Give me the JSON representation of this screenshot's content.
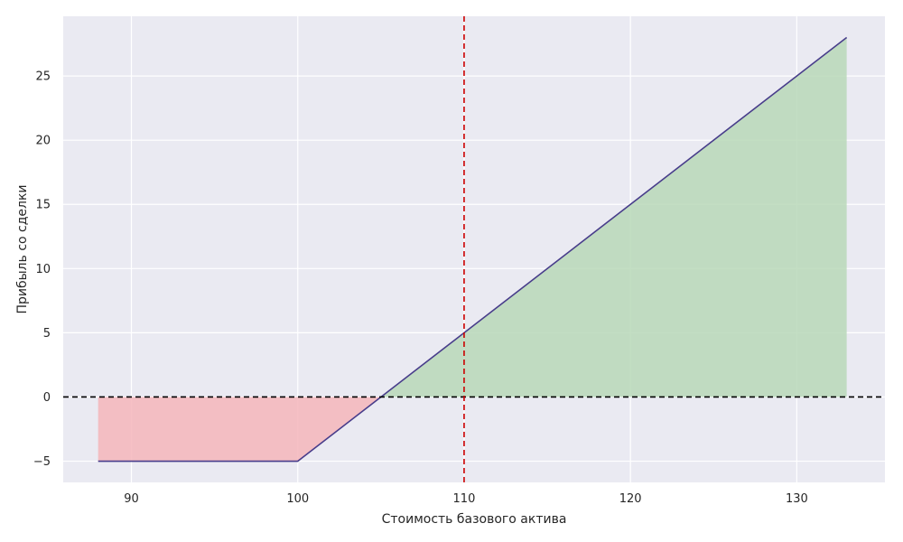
{
  "chart_data": {
    "type": "line",
    "title": "",
    "xlabel": "Стоимость базового актива",
    "ylabel": "Прибыль со сделки",
    "xlim": [
      85.9,
      135.3
    ],
    "ylim": [
      -6.65,
      29.65
    ],
    "x_ticks": [
      90,
      100,
      110,
      120,
      130
    ],
    "y_ticks": [
      -5,
      0,
      5,
      10,
      15,
      20,
      25
    ],
    "x_tick_labels": [
      "90",
      "100",
      "110",
      "120",
      "130"
    ],
    "y_tick_labels": [
      "−5",
      "0",
      "5",
      "10",
      "15",
      "20",
      "25"
    ],
    "grid": true,
    "series": [
      {
        "x": [
          88,
          100,
          105,
          133
        ],
        "y": [
          -5,
          -5,
          0,
          28
        ],
        "color": "#483d8b"
      }
    ],
    "fill_profit": {
      "color": "#b8d8b8",
      "from_x": 105,
      "to_x": 133
    },
    "fill_loss": {
      "color": "#f4b6bb",
      "from_x": 88,
      "to_x": 105
    },
    "hlines": [
      {
        "y": 0,
        "color": "#000000",
        "style": "dashed"
      }
    ],
    "vlines": [
      {
        "x": 110,
        "color": "#cc0000",
        "style": "dashed"
      }
    ],
    "colors": {
      "background": "#eaeaf2",
      "grid": "#ffffff"
    }
  }
}
